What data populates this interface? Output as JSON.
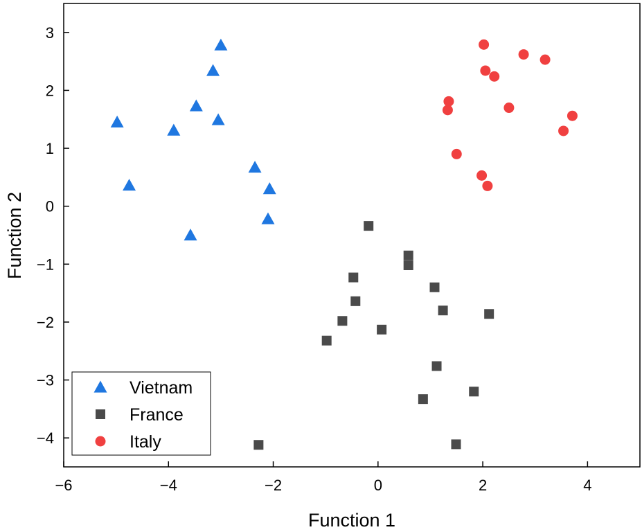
{
  "chart_data": {
    "type": "scatter",
    "xlabel": "Function 1",
    "ylabel": "Function 2",
    "xlim": [
      -6,
      5
    ],
    "ylim": [
      -4.5,
      3.5
    ],
    "xticks": [
      -6,
      -4,
      -2,
      0,
      2,
      4
    ],
    "yticks": [
      -4,
      -3,
      -2,
      -1,
      0,
      1,
      2,
      3
    ],
    "xtick_labels": [
      "−6",
      "−4",
      "−2",
      "0",
      "2",
      "4"
    ],
    "ytick_labels": [
      "−4",
      "−3",
      "−2",
      "−1",
      "0",
      "1",
      "2",
      "3"
    ],
    "grid": false,
    "legend_position": "bottom-left",
    "series": [
      {
        "name": "Vietnam",
        "marker": "triangle",
        "color": "#1f77e0",
        "points": [
          [
            -3.0,
            2.78
          ],
          [
            -3.15,
            2.34
          ],
          [
            -3.47,
            1.73
          ],
          [
            -4.98,
            1.45
          ],
          [
            -3.9,
            1.31
          ],
          [
            -3.05,
            1.49
          ],
          [
            -4.75,
            0.36
          ],
          [
            -2.35,
            0.67
          ],
          [
            -2.07,
            0.3
          ],
          [
            -2.1,
            -0.22
          ],
          [
            -3.58,
            -0.5
          ]
        ]
      },
      {
        "name": "France",
        "marker": "square",
        "color": "#4a4a4a",
        "points": [
          [
            -0.18,
            -0.34
          ],
          [
            0.58,
            -0.85
          ],
          [
            0.58,
            -1.02
          ],
          [
            -0.47,
            -1.23
          ],
          [
            1.08,
            -1.4
          ],
          [
            -0.43,
            -1.64
          ],
          [
            1.24,
            -1.8
          ],
          [
            2.12,
            -1.86
          ],
          [
            -0.68,
            -1.98
          ],
          [
            0.07,
            -2.13
          ],
          [
            -0.98,
            -2.32
          ],
          [
            1.12,
            -2.76
          ],
          [
            1.83,
            -3.2
          ],
          [
            0.86,
            -3.33
          ],
          [
            -2.28,
            -4.12
          ],
          [
            1.49,
            -4.11
          ]
        ]
      },
      {
        "name": "Italy",
        "marker": "circle",
        "color": "#f04040",
        "points": [
          [
            2.02,
            2.79
          ],
          [
            2.78,
            2.62
          ],
          [
            3.19,
            2.53
          ],
          [
            2.05,
            2.34
          ],
          [
            2.22,
            2.24
          ],
          [
            1.35,
            1.81
          ],
          [
            1.33,
            1.66
          ],
          [
            2.5,
            1.7
          ],
          [
            3.71,
            1.56
          ],
          [
            3.54,
            1.3
          ],
          [
            1.5,
            0.9
          ],
          [
            1.98,
            0.53
          ],
          [
            2.09,
            0.35
          ]
        ]
      }
    ]
  }
}
